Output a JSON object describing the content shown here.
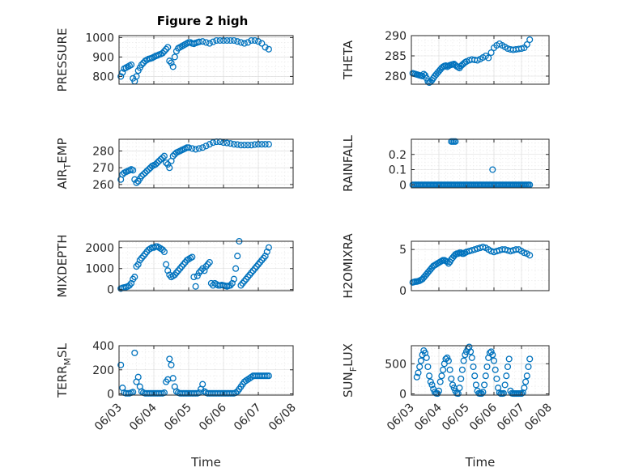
{
  "figure": {
    "title": "Figure 2 high"
  },
  "colors": {
    "marker": "#0072BD",
    "axis": "#262626",
    "grid": "#d9d9d9"
  },
  "chart_data": [
    {
      "type": "scatter",
      "ylabel": "PRESSURE",
      "ylabel_base": "PRESSURE",
      "ylabel_sub": "",
      "ylabel_rest": "",
      "xlim": [
        0,
        5
      ],
      "ylim": [
        760,
        1010
      ],
      "yticks": [
        800,
        900,
        1000
      ],
      "grid": true,
      "show_xticks": false,
      "xlabel": "",
      "x": [
        0.05,
        0.1,
        0.15,
        0.2,
        0.25,
        0.3,
        0.35,
        0.4,
        0.45,
        0.5,
        0.55,
        0.6,
        0.65,
        0.7,
        0.75,
        0.8,
        0.85,
        0.9,
        0.95,
        1.0,
        1.05,
        1.1,
        1.15,
        1.2,
        1.25,
        1.3,
        1.35,
        1.4,
        1.45,
        1.5,
        1.55,
        1.6,
        1.65,
        1.7,
        1.75,
        1.8,
        1.85,
        1.9,
        1.95,
        2.0,
        2.05,
        2.1,
        2.15,
        2.2,
        2.25,
        2.3,
        2.4,
        2.5,
        2.6,
        2.7,
        2.8,
        2.9,
        3.0,
        3.1,
        3.2,
        3.3,
        3.4,
        3.5,
        3.6,
        3.7,
        3.8,
        3.9,
        4.0,
        4.1,
        4.2,
        4.3
      ],
      "y": [
        800,
        820,
        840,
        845,
        850,
        855,
        860,
        790,
        775,
        800,
        830,
        845,
        860,
        870,
        880,
        885,
        890,
        892,
        895,
        900,
        905,
        908,
        912,
        915,
        920,
        930,
        940,
        950,
        880,
        870,
        850,
        900,
        930,
        945,
        950,
        955,
        960,
        965,
        970,
        975,
        975,
        970,
        968,
        972,
        975,
        978,
        980,
        975,
        970,
        978,
        985,
        985,
        985,
        985,
        985,
        985,
        980,
        975,
        970,
        975,
        985,
        985,
        980,
        970,
        950,
        940
      ]
    },
    {
      "type": "scatter",
      "ylabel": "THETA",
      "ylabel_base": "THETA",
      "ylabel_sub": "",
      "ylabel_rest": "",
      "xlim": [
        0,
        5
      ],
      "ylim": [
        278,
        290
      ],
      "yticks": [
        280,
        285,
        290
      ],
      "grid": true,
      "show_xticks": false,
      "xlabel": "",
      "x": [
        0.05,
        0.1,
        0.15,
        0.2,
        0.25,
        0.3,
        0.35,
        0.4,
        0.45,
        0.5,
        0.55,
        0.6,
        0.65,
        0.7,
        0.75,
        0.8,
        0.85,
        0.9,
        0.95,
        1.0,
        1.05,
        1.1,
        1.15,
        1.2,
        1.25,
        1.3,
        1.35,
        1.4,
        1.45,
        1.5,
        1.55,
        1.6,
        1.65,
        1.7,
        1.75,
        1.8,
        1.85,
        1.9,
        1.95,
        2.0,
        2.1,
        2.2,
        2.3,
        2.4,
        2.5,
        2.6,
        2.7,
        2.8,
        2.9,
        3.0,
        3.1,
        3.2,
        3.3,
        3.4,
        3.5,
        3.6,
        3.7,
        3.8,
        3.9,
        4.0,
        4.1,
        4.2,
        4.3
      ],
      "y": [
        280.7,
        280.6,
        280.5,
        280.4,
        280.3,
        280.2,
        280.1,
        280.0,
        280.5,
        280.2,
        279.5,
        278.7,
        278.4,
        278.6,
        279.0,
        279.5,
        280.0,
        280.4,
        280.8,
        281.2,
        281.6,
        282.0,
        282.3,
        282.5,
        282.6,
        282.3,
        282.5,
        282.7,
        282.8,
        282.9,
        283.0,
        282.7,
        282.4,
        282.2,
        282.0,
        282.5,
        282.8,
        283.1,
        283.4,
        283.6,
        283.9,
        284.1,
        284.0,
        283.9,
        284.2,
        284.6,
        285.0,
        284.5,
        285.8,
        287.0,
        287.6,
        288.0,
        287.6,
        287.2,
        286.8,
        286.6,
        286.5,
        286.6,
        286.7,
        286.8,
        287.0,
        287.8,
        289.0
      ]
    },
    {
      "type": "scatter",
      "ylabel": "AIR_TEMP",
      "ylabel_base": "AIR",
      "ylabel_sub": "T",
      "ylabel_rest": "EMP",
      "xlim": [
        0,
        5
      ],
      "ylim": [
        258,
        287
      ],
      "yticks": [
        260,
        270,
        280
      ],
      "grid": true,
      "show_xticks": false,
      "xlabel": "",
      "x": [
        0.05,
        0.1,
        0.15,
        0.2,
        0.25,
        0.3,
        0.35,
        0.4,
        0.45,
        0.5,
        0.55,
        0.6,
        0.65,
        0.7,
        0.75,
        0.8,
        0.85,
        0.9,
        0.95,
        1.0,
        1.05,
        1.1,
        1.15,
        1.2,
        1.25,
        1.3,
        1.35,
        1.4,
        1.45,
        1.5,
        1.55,
        1.6,
        1.65,
        1.7,
        1.75,
        1.8,
        1.85,
        1.9,
        1.95,
        2.0,
        2.1,
        2.2,
        2.3,
        2.4,
        2.5,
        2.6,
        2.7,
        2.8,
        2.9,
        3.0,
        3.1,
        3.2,
        3.3,
        3.4,
        3.5,
        3.6,
        3.7,
        3.8,
        3.9,
        4.0,
        4.1,
        4.2,
        4.3
      ],
      "y": [
        263,
        266,
        267,
        267.5,
        268,
        268.5,
        269,
        268.5,
        263,
        261,
        262,
        263.5,
        265,
        266,
        267,
        268,
        269,
        270,
        271,
        271.5,
        272,
        273,
        274,
        275,
        276,
        277,
        273,
        272,
        270,
        274,
        277,
        278,
        279,
        279.5,
        280,
        280.5,
        281,
        281.5,
        282,
        282,
        281.5,
        281,
        281.5,
        282,
        283,
        284,
        285,
        285.5,
        285.5,
        285,
        284.8,
        284.5,
        284,
        283.8,
        283.5,
        283.5,
        283.5,
        283.5,
        283.8,
        284,
        284,
        284,
        284
      ]
    },
    {
      "type": "scatter",
      "ylabel": "RAINFALL",
      "ylabel_base": "RAINFALL",
      "ylabel_sub": "",
      "ylabel_rest": "",
      "xlim": [
        0,
        5
      ],
      "ylim": [
        -0.02,
        0.3
      ],
      "yticks": [
        0,
        0.1,
        0.2
      ],
      "grid": true,
      "show_xticks": false,
      "xlabel": "",
      "x": [
        0.05,
        0.1,
        0.15,
        0.2,
        0.25,
        0.3,
        0.35,
        0.4,
        0.45,
        0.5,
        0.55,
        0.6,
        0.65,
        0.7,
        0.75,
        0.8,
        0.85,
        0.9,
        0.95,
        1.0,
        1.05,
        1.1,
        1.15,
        1.2,
        1.25,
        1.3,
        1.35,
        1.4,
        1.45,
        1.5,
        1.55,
        1.6,
        1.65,
        1.7,
        1.75,
        1.8,
        1.85,
        1.9,
        1.95,
        2.0,
        2.05,
        2.1,
        2.15,
        2.2,
        2.25,
        2.3,
        2.35,
        2.4,
        2.45,
        2.5,
        2.55,
        2.6,
        2.65,
        2.7,
        2.75,
        2.8,
        2.85,
        2.9,
        2.95,
        3.0,
        3.05,
        3.1,
        3.15,
        3.2,
        3.25,
        3.3,
        3.35,
        3.4,
        3.45,
        3.5,
        3.55,
        3.6,
        3.65,
        3.7,
        3.75,
        3.8,
        3.85,
        3.9,
        3.95,
        4.0,
        4.05,
        4.1,
        4.15,
        4.2,
        4.25,
        4.3,
        1.45,
        1.5,
        1.55,
        1.6,
        2.95
      ],
      "y": [
        0,
        0,
        0,
        0,
        0,
        0,
        0,
        0,
        0,
        0,
        0,
        0,
        0,
        0,
        0,
        0,
        0,
        0,
        0,
        0,
        0,
        0,
        0,
        0,
        0,
        0,
        0,
        0,
        0,
        0,
        0,
        0,
        0,
        0,
        0,
        0,
        0,
        0,
        0,
        0,
        0,
        0,
        0,
        0,
        0,
        0,
        0,
        0,
        0,
        0,
        0,
        0,
        0,
        0,
        0,
        0,
        0,
        0,
        0,
        0,
        0,
        0,
        0,
        0,
        0,
        0,
        0,
        0,
        0,
        0,
        0,
        0,
        0,
        0,
        0,
        0,
        0,
        0,
        0,
        0,
        0,
        0,
        0,
        0,
        0,
        0,
        0.285,
        0.285,
        0.285,
        0.285,
        0.1
      ]
    },
    {
      "type": "scatter",
      "ylabel": "MIXDEPTH",
      "ylabel_base": "MIXDEPTH",
      "ylabel_sub": "",
      "ylabel_rest": "",
      "xlim": [
        0,
        5
      ],
      "ylim": [
        -50,
        2300
      ],
      "yticks": [
        0,
        1000,
        2000
      ],
      "grid": true,
      "show_xticks": false,
      "xlabel": "",
      "x": [
        0.05,
        0.1,
        0.15,
        0.2,
        0.25,
        0.3,
        0.35,
        0.4,
        0.45,
        0.5,
        0.55,
        0.6,
        0.65,
        0.7,
        0.75,
        0.8,
        0.85,
        0.9,
        0.95,
        1.0,
        1.05,
        1.1,
        1.15,
        1.2,
        1.25,
        1.3,
        1.35,
        1.4,
        1.45,
        1.5,
        1.55,
        1.6,
        1.65,
        1.7,
        1.75,
        1.8,
        1.85,
        1.9,
        1.95,
        2.0,
        2.05,
        2.1,
        2.15,
        2.2,
        2.25,
        2.3,
        2.35,
        2.4,
        2.45,
        2.5,
        2.55,
        2.6,
        2.65,
        2.7,
        2.75,
        2.8,
        2.85,
        2.9,
        2.95,
        3.0,
        3.05,
        3.1,
        3.15,
        3.2,
        3.25,
        3.3,
        3.35,
        3.4,
        3.45,
        3.5,
        3.55,
        3.6,
        3.65,
        3.7,
        3.75,
        3.8,
        3.85,
        3.9,
        3.95,
        4.0,
        4.05,
        4.1,
        4.15,
        4.2,
        4.25,
        4.3
      ],
      "y": [
        50,
        80,
        100,
        120,
        150,
        200,
        300,
        500,
        600,
        1100,
        1200,
        1400,
        1500,
        1600,
        1700,
        1800,
        1900,
        1950,
        2000,
        2000,
        2050,
        2050,
        2000,
        1950,
        1900,
        1800,
        1200,
        900,
        700,
        600,
        650,
        700,
        800,
        900,
        1000,
        1100,
        1200,
        1300,
        1400,
        1450,
        1500,
        1550,
        600,
        150,
        650,
        800,
        900,
        1000,
        900,
        1100,
        1200,
        1300,
        300,
        200,
        300,
        250,
        200,
        200,
        220,
        200,
        180,
        150,
        180,
        200,
        300,
        500,
        1000,
        1600,
        2300,
        200,
        300,
        400,
        500,
        600,
        700,
        800,
        900,
        1000,
        1100,
        1200,
        1300,
        1400,
        1500,
        1600,
        1800,
        2000
      ]
    },
    {
      "type": "scatter",
      "ylabel": "H2OMIXRA",
      "ylabel_base": "H2OMIXRA",
      "ylabel_sub": "",
      "ylabel_rest": "",
      "xlim": [
        0,
        5
      ],
      "ylim": [
        0,
        6
      ],
      "yticks": [
        0,
        5
      ],
      "grid": true,
      "show_xticks": false,
      "xlabel": "",
      "x": [
        0.05,
        0.1,
        0.15,
        0.2,
        0.25,
        0.3,
        0.35,
        0.4,
        0.45,
        0.5,
        0.55,
        0.6,
        0.65,
        0.7,
        0.75,
        0.8,
        0.85,
        0.9,
        0.95,
        1.0,
        1.05,
        1.1,
        1.15,
        1.2,
        1.25,
        1.3,
        1.35,
        1.4,
        1.45,
        1.5,
        1.55,
        1.6,
        1.65,
        1.7,
        1.75,
        1.8,
        1.85,
        1.9,
        1.95,
        2.0,
        2.1,
        2.2,
        2.3,
        2.4,
        2.5,
        2.6,
        2.7,
        2.8,
        2.9,
        3.0,
        3.1,
        3.2,
        3.3,
        3.4,
        3.5,
        3.6,
        3.7,
        3.8,
        3.9,
        4.0,
        4.1,
        4.2,
        4.3
      ],
      "y": [
        1.0,
        1.05,
        1.1,
        1.1,
        1.15,
        1.2,
        1.3,
        1.4,
        1.6,
        1.8,
        2.0,
        2.2,
        2.4,
        2.6,
        2.8,
        3.0,
        3.1,
        3.2,
        3.3,
        3.4,
        3.5,
        3.6,
        3.7,
        3.7,
        3.6,
        3.5,
        3.3,
        3.5,
        3.8,
        4.0,
        4.2,
        4.4,
        4.5,
        4.5,
        4.6,
        4.6,
        4.5,
        4.5,
        4.6,
        4.7,
        4.8,
        4.9,
        5.0,
        5.1,
        5.2,
        5.3,
        5.2,
        5.0,
        4.8,
        4.7,
        4.8,
        4.9,
        5.0,
        5.0,
        4.9,
        4.8,
        4.9,
        5.0,
        5.0,
        4.8,
        4.6,
        4.5,
        4.3
      ]
    },
    {
      "type": "scatter",
      "ylabel": "TERR_MSL",
      "ylabel_base": "TERR",
      "ylabel_sub": "M",
      "ylabel_rest": "SL",
      "xlim": [
        0,
        5
      ],
      "ylim": [
        -10,
        400
      ],
      "yticks": [
        0,
        200,
        400
      ],
      "grid": true,
      "show_xticks": true,
      "xlabel": "Time",
      "xticks": [
        0,
        1,
        2,
        3,
        4,
        5
      ],
      "xticklabels": [
        "06/03",
        "06/04",
        "06/05",
        "06/06",
        "06/07",
        "06/08"
      ],
      "x": [
        0.05,
        0.1,
        0.15,
        0.2,
        0.25,
        0.3,
        0.35,
        0.4,
        0.45,
        0.5,
        0.55,
        0.6,
        0.65,
        0.7,
        0.75,
        0.8,
        0.85,
        0.9,
        0.95,
        1.0,
        1.05,
        1.1,
        1.15,
        1.2,
        1.25,
        1.3,
        1.35,
        1.4,
        1.45,
        1.5,
        1.55,
        1.6,
        1.65,
        1.7,
        1.75,
        1.8,
        1.85,
        1.9,
        1.95,
        2.0,
        2.05,
        2.1,
        2.15,
        2.2,
        2.25,
        2.3,
        2.35,
        2.4,
        2.45,
        2.5,
        2.55,
        2.6,
        2.65,
        2.7,
        2.75,
        2.8,
        2.85,
        2.9,
        2.95,
        3.0,
        3.05,
        3.1,
        3.15,
        3.2,
        3.25,
        3.3,
        3.35,
        3.4,
        3.45,
        3.5,
        3.55,
        3.6,
        3.65,
        3.7,
        3.75,
        3.8,
        3.85,
        3.9,
        3.95,
        4.0,
        4.05,
        4.1,
        4.15,
        4.2,
        4.25,
        4.3
      ],
      "y": [
        240,
        50,
        10,
        5,
        5,
        5,
        10,
        15,
        340,
        100,
        140,
        60,
        20,
        10,
        5,
        5,
        5,
        5,
        5,
        5,
        5,
        5,
        5,
        5,
        5,
        10,
        100,
        120,
        290,
        240,
        130,
        60,
        20,
        10,
        5,
        5,
        5,
        5,
        5,
        5,
        5,
        5,
        5,
        5,
        5,
        10,
        40,
        80,
        20,
        10,
        5,
        5,
        5,
        5,
        5,
        5,
        5,
        5,
        5,
        5,
        5,
        5,
        5,
        5,
        5,
        5,
        10,
        20,
        40,
        60,
        80,
        100,
        110,
        120,
        130,
        140,
        150,
        150,
        150,
        150,
        150,
        150,
        150,
        150,
        150,
        150
      ]
    },
    {
      "type": "scatter",
      "ylabel": "SUN_FLUX",
      "ylabel_base": "SUN",
      "ylabel_sub": "F",
      "ylabel_rest": "LUX",
      "xlim": [
        0,
        5
      ],
      "ylim": [
        -20,
        800
      ],
      "yticks": [
        0,
        500
      ],
      "grid": true,
      "show_xticks": true,
      "xlabel": "Time",
      "xticks": [
        0,
        1,
        2,
        3,
        4,
        5
      ],
      "xticklabels": [
        "06/03",
        "06/04",
        "06/05",
        "06/06",
        "06/07",
        "06/08"
      ],
      "x": [
        0.2,
        0.25,
        0.3,
        0.35,
        0.4,
        0.45,
        0.5,
        0.55,
        0.6,
        0.65,
        0.7,
        0.75,
        0.8,
        0.85,
        0.9,
        0.95,
        1.0,
        1.05,
        1.1,
        1.15,
        1.2,
        1.25,
        1.3,
        1.35,
        1.4,
        1.45,
        1.5,
        1.55,
        1.6,
        1.65,
        1.7,
        1.75,
        1.8,
        1.85,
        1.9,
        1.95,
        2.0,
        2.05,
        2.1,
        2.15,
        2.2,
        2.25,
        2.3,
        2.35,
        2.4,
        2.45,
        2.5,
        2.55,
        2.6,
        2.65,
        2.7,
        2.75,
        2.8,
        2.85,
        2.9,
        2.95,
        3.0,
        3.05,
        3.1,
        3.15,
        3.2,
        3.25,
        3.3,
        3.35,
        3.4,
        3.45,
        3.5,
        3.55,
        3.6,
        3.65,
        3.7,
        3.75,
        3.8,
        3.85,
        3.9,
        3.95,
        4.0,
        4.05,
        4.1,
        4.15,
        4.2,
        4.25,
        4.3
      ],
      "y": [
        280,
        350,
        450,
        550,
        650,
        720,
        680,
        600,
        450,
        300,
        200,
        150,
        80,
        30,
        10,
        5,
        50,
        200,
        300,
        400,
        500,
        580,
        600,
        550,
        400,
        250,
        150,
        100,
        50,
        10,
        5,
        100,
        250,
        400,
        550,
        650,
        700,
        750,
        780,
        700,
        600,
        450,
        300,
        150,
        50,
        10,
        5,
        5,
        30,
        150,
        300,
        450,
        600,
        680,
        700,
        650,
        550,
        400,
        250,
        100,
        20,
        5,
        5,
        10,
        150,
        300,
        450,
        580,
        50,
        10,
        5,
        5,
        5,
        5,
        5,
        5,
        5,
        20,
        100,
        200,
        300,
        450,
        580
      ]
    }
  ]
}
